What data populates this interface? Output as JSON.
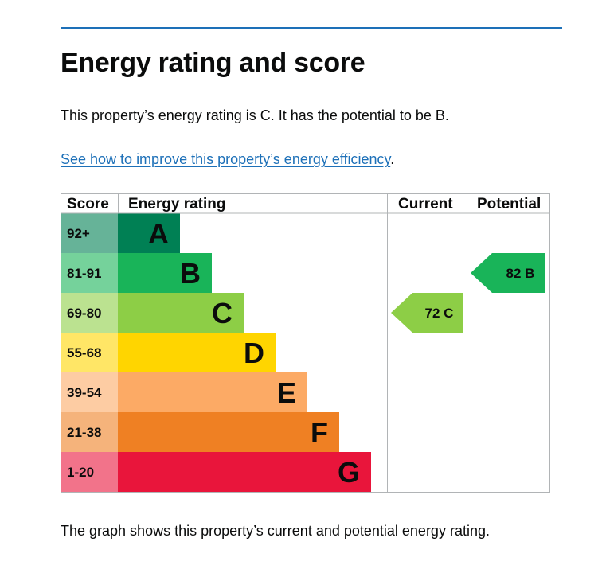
{
  "page": {
    "heading": "Energy rating and score",
    "intro": "This property’s energy rating is C. It has the potential to be B.",
    "link_text": "See how to improve this property’s energy efficiency",
    "link_suffix": ".",
    "footer": "The graph shows this property’s current and potential energy rating."
  },
  "chart_data": {
    "type": "table",
    "columns": [
      "Score",
      "Energy rating",
      "Current",
      "Potential"
    ],
    "bands": [
      {
        "score": "92+",
        "letter": "A",
        "color": "#008054",
        "score_bg": "#66b398"
      },
      {
        "score": "81-91",
        "letter": "B",
        "color": "#19b459",
        "score_bg": "#75d29b"
      },
      {
        "score": "69-80",
        "letter": "C",
        "color": "#8dce46",
        "score_bg": "#bbe290"
      },
      {
        "score": "55-68",
        "letter": "D",
        "color": "#ffd500",
        "score_bg": "#ffe666"
      },
      {
        "score": "39-54",
        "letter": "E",
        "color": "#fcaa65",
        "score_bg": "#fdcca3"
      },
      {
        "score": "21-38",
        "letter": "F",
        "color": "#ef8023",
        "score_bg": "#f5b37b"
      },
      {
        "score": "1-20",
        "letter": "G",
        "color": "#e9153b",
        "score_bg": "#f2738a"
      }
    ],
    "current": {
      "score": 72,
      "band": "C",
      "label": "72  C",
      "color": "#8dce46"
    },
    "potential": {
      "score": 82,
      "band": "B",
      "label": "82  B",
      "color": "#19b459"
    }
  }
}
